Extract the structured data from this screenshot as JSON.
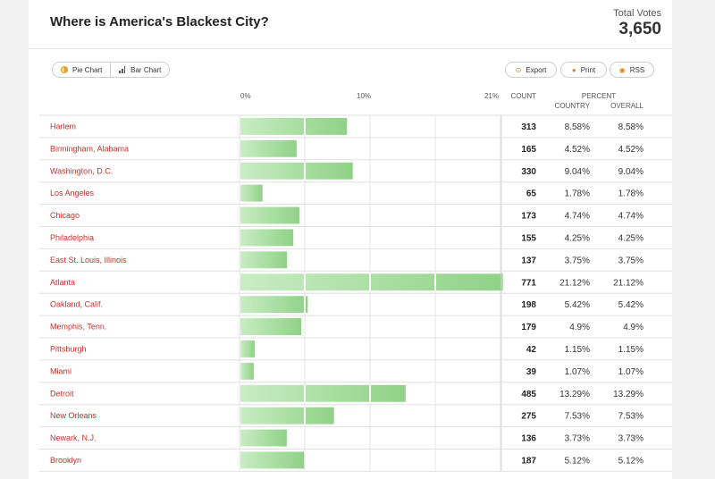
{
  "title": "Where is America's Blackest City?",
  "total_votes": {
    "label": "Total Votes",
    "value": "3,650"
  },
  "toggle": {
    "pie_label": "Pie Chart",
    "bar_label": "Bar Chart",
    "active": "bar"
  },
  "buttons": {
    "export": "Export",
    "print": "Print",
    "rss": "RSS"
  },
  "icons": {
    "pie": "pie-chart-icon",
    "bar": "bar-chart-icon",
    "export": "export-icon",
    "print": "print-icon",
    "rss": "rss-icon"
  },
  "colors": {
    "bar": "#a8dca0",
    "label": "#c8312b"
  },
  "table_headers": {
    "count": "COUNT",
    "percent": "PERCENT",
    "country": "COUNTRY",
    "overall": "OVERALL"
  },
  "chart_data": {
    "type": "bar",
    "orientation": "horizontal",
    "tick_labels": [
      "0%",
      "10%",
      "21%"
    ],
    "xlim": [
      0,
      21
    ],
    "categories": [
      "Harlem",
      "Birmingham, Alabama",
      "Washington, D.C.",
      "Los Angeles",
      "Chicago",
      "Philadelphia",
      "East St. Louis, Illinois",
      "Atlanta",
      "Oakland, Calif.",
      "Memphis, Tenn.",
      "Pittsburgh",
      "Miami",
      "Detroit",
      "New Orleans",
      "Newark, N.J.",
      "Brooklyn"
    ],
    "counts": [
      313,
      165,
      330,
      65,
      173,
      155,
      137,
      771,
      198,
      179,
      42,
      39,
      485,
      275,
      136,
      187
    ],
    "values": [
      8.58,
      4.52,
      9.04,
      1.78,
      4.74,
      4.25,
      3.75,
      21.12,
      5.42,
      4.9,
      1.15,
      1.07,
      13.29,
      7.53,
      3.73,
      5.12
    ],
    "country_pct": [
      "8.58%",
      "4.52%",
      "9.04%",
      "1.78%",
      "4.74%",
      "4.25%",
      "3.75%",
      "21.12%",
      "5.42%",
      "4.9%",
      "1.15%",
      "1.07%",
      "13.29%",
      "7.53%",
      "3.73%",
      "5.12%"
    ],
    "overall_pct": [
      "8.58%",
      "4.52%",
      "9.04%",
      "1.78%",
      "4.74%",
      "4.25%",
      "3.75%",
      "21.12%",
      "5.42%",
      "4.9%",
      "1.15%",
      "1.07%",
      "13.29%",
      "7.53%",
      "3.73%",
      "5.12%"
    ]
  }
}
